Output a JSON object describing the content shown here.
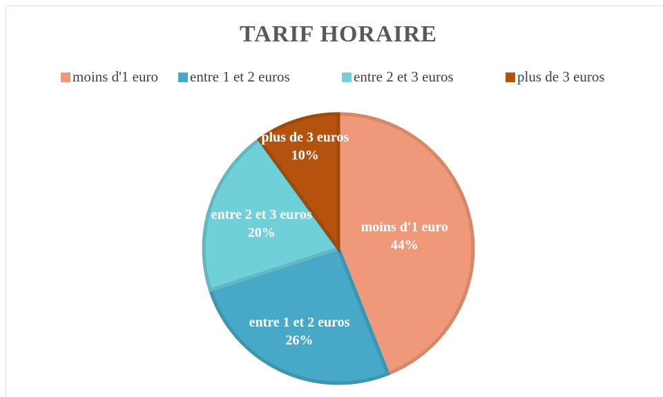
{
  "chart_data": {
    "type": "pie",
    "title": "TARIF HORAIRE",
    "categories": [
      "moins d'1 euro",
      "entre 1 et 2 euros",
      "entre 2 et 3 euros",
      "plus de 3 euros"
    ],
    "values": [
      44,
      26,
      20,
      10
    ],
    "value_labels": [
      "44%",
      "26%",
      "20%",
      "10%"
    ],
    "colors": [
      "#F0997A",
      "#47A9C7",
      "#6FD0DA",
      "#B5530E"
    ],
    "legend": "top"
  }
}
